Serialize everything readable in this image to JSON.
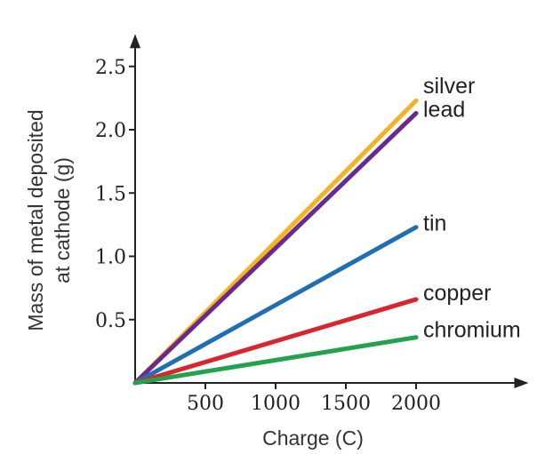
{
  "chart_data": {
    "type": "line",
    "xlabel": "Charge (C)",
    "ylabel_lines": [
      "Mass of metal deposited",
      "at cathode (g)"
    ],
    "x_ticks": [
      500,
      1000,
      1500,
      2000
    ],
    "x_tick_labels": [
      "500",
      "1000",
      "1500",
      "2000"
    ],
    "y_ticks": [
      0.5,
      1.0,
      1.5,
      2.0,
      2.5
    ],
    "y_tick_labels": [
      "0.5",
      "1.0",
      "1.5",
      "2.0",
      "2.5"
    ],
    "xlim": [
      0,
      2750
    ],
    "ylim": [
      0,
      2.7
    ],
    "grid": false,
    "legend": "inline-right",
    "series": [
      {
        "name": "silver",
        "x": [
          0,
          2000
        ],
        "y": [
          0,
          2.23
        ],
        "color": "#f5b324"
      },
      {
        "name": "lead",
        "x": [
          0,
          2000
        ],
        "y": [
          0,
          2.13
        ],
        "color": "#6a2a8c"
      },
      {
        "name": "tin",
        "x": [
          0,
          2000
        ],
        "y": [
          0,
          1.23
        ],
        "color": "#1f6fb2"
      },
      {
        "name": "copper",
        "x": [
          0,
          2000
        ],
        "y": [
          0,
          0.66
        ],
        "color": "#d8262f"
      },
      {
        "name": "chromium",
        "x": [
          0,
          2000
        ],
        "y": [
          0,
          0.36
        ],
        "color": "#22a24a"
      }
    ]
  }
}
